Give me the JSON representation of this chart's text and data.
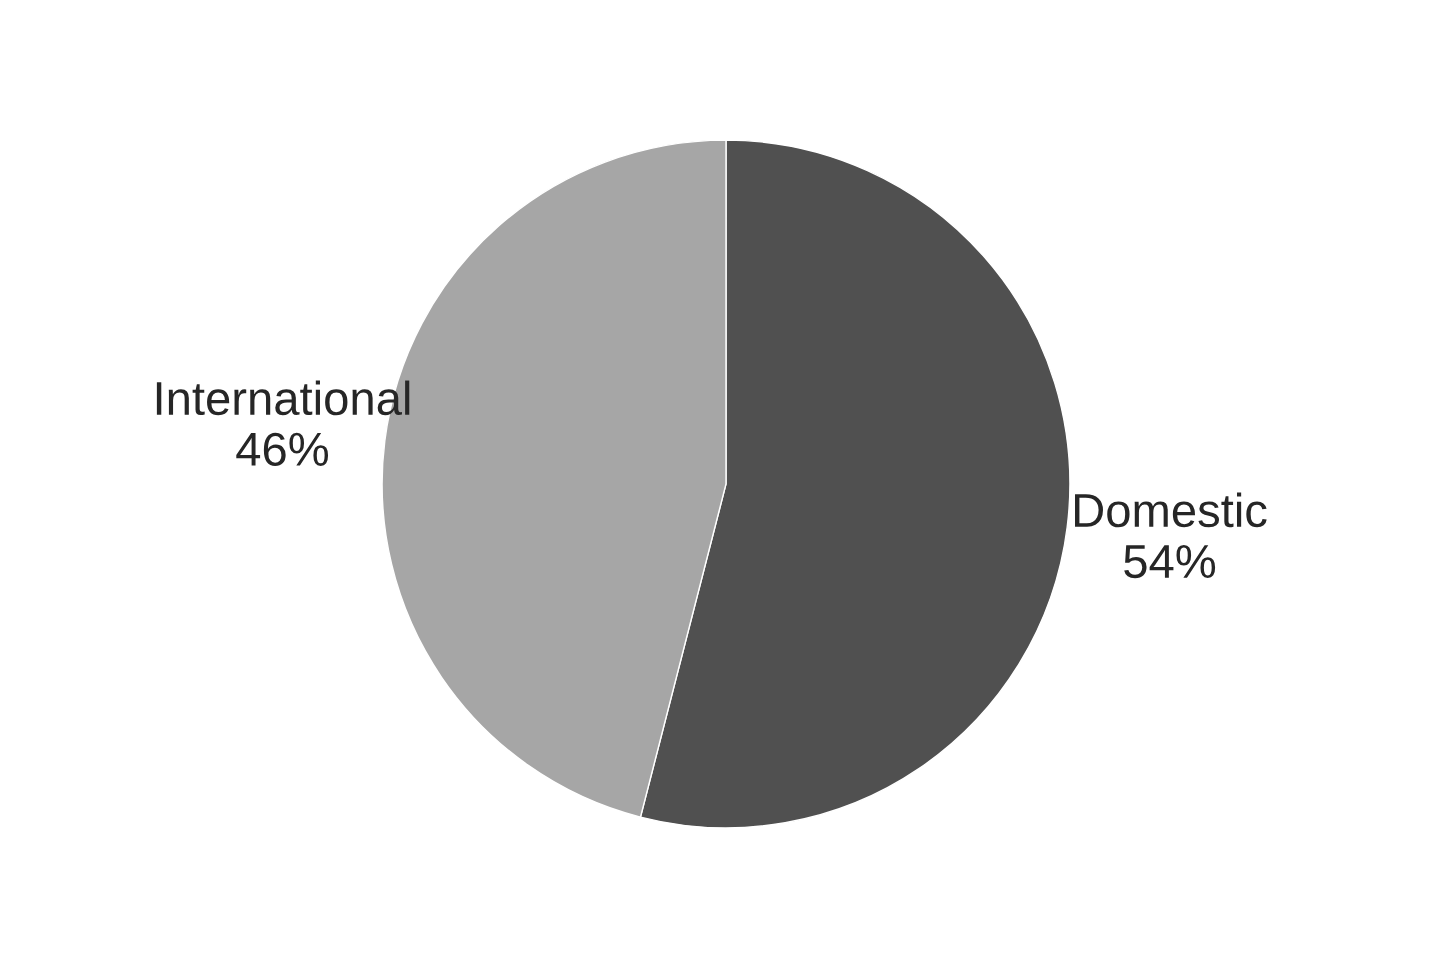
{
  "chart_data": {
    "type": "pie",
    "categories": [
      "Domestic",
      "International"
    ],
    "values": [
      54,
      46
    ],
    "value_labels": [
      "54%",
      "46%"
    ],
    "colors": [
      "#505050",
      "#a6a6a6"
    ]
  }
}
